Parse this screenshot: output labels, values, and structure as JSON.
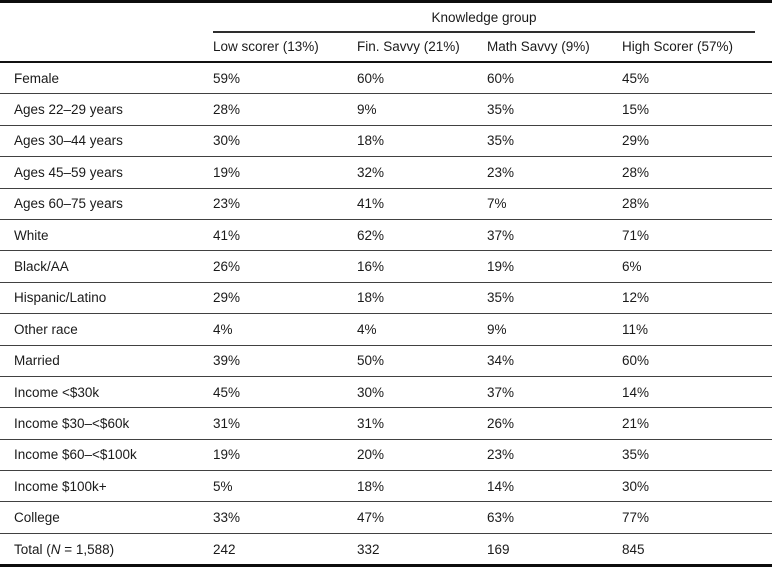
{
  "table": {
    "spanner": "Knowledge group",
    "columns": [
      "Low scorer (13%)",
      "Fin. Savvy (21%)",
      "Math Savvy (9%)",
      "High Scorer (57%)"
    ],
    "rows": [
      {
        "label": "Female",
        "values": [
          "59%",
          "60%",
          "60%",
          "45%"
        ]
      },
      {
        "label": "Ages 22–29 years",
        "values": [
          "28%",
          "9%",
          "35%",
          "15%"
        ]
      },
      {
        "label": "Ages 30–44 years",
        "values": [
          "30%",
          "18%",
          "35%",
          "29%"
        ]
      },
      {
        "label": "Ages 45–59 years",
        "values": [
          "19%",
          "32%",
          "23%",
          "28%"
        ]
      },
      {
        "label": "Ages 60–75 years",
        "values": [
          "23%",
          "41%",
          "7%",
          "28%"
        ]
      },
      {
        "label": "White",
        "values": [
          "41%",
          "62%",
          "37%",
          "71%"
        ]
      },
      {
        "label": "Black/AA",
        "values": [
          "26%",
          "16%",
          "19%",
          "6%"
        ]
      },
      {
        "label": "Hispanic/Latino",
        "values": [
          "29%",
          "18%",
          "35%",
          "12%"
        ]
      },
      {
        "label": "Other race",
        "values": [
          "4%",
          "4%",
          "9%",
          "11%"
        ]
      },
      {
        "label": "Married",
        "values": [
          "39%",
          "50%",
          "34%",
          "60%"
        ]
      },
      {
        "label": "Income <$30k",
        "values": [
          "45%",
          "30%",
          "37%",
          "14%"
        ]
      },
      {
        "label": "Income $30–<$60k",
        "values": [
          "31%",
          "31%",
          "26%",
          "21%"
        ]
      },
      {
        "label": "Income $60–<$100k",
        "values": [
          "19%",
          "20%",
          "23%",
          "35%"
        ]
      },
      {
        "label": "Income $100k+",
        "values": [
          "5%",
          "18%",
          "14%",
          "30%"
        ]
      },
      {
        "label": "College",
        "values": [
          "33%",
          "47%",
          "63%",
          "77%"
        ]
      },
      {
        "label_parts": [
          "Total (",
          "N",
          " = 1,588)"
        ],
        "italic_index": 1,
        "values": [
          "242",
          "332",
          "169",
          "845"
        ]
      }
    ]
  }
}
